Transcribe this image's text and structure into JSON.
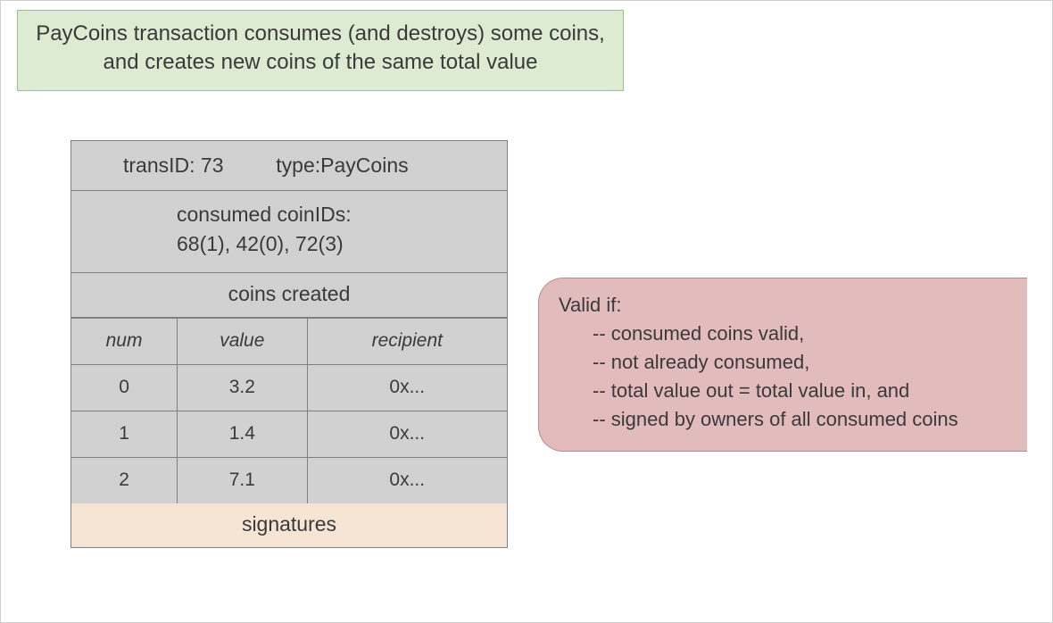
{
  "banner": {
    "line1": "PayCoins transaction consumes (and destroys) some coins,",
    "line2": "and creates new coins of the same total value"
  },
  "transaction": {
    "id_label": "transID:",
    "id_value": "73",
    "type_label": "type:",
    "type_value": "PayCoins",
    "consumed_label": "consumed coinIDs:",
    "consumed_list": "68(1), 42(0), 72(3)",
    "coins_created_label": "coins created",
    "columns": {
      "num": "num",
      "value": "value",
      "recipient": "recipient"
    },
    "rows": [
      {
        "num": "0",
        "value": "3.2",
        "recipient": "0x..."
      },
      {
        "num": "1",
        "value": "1.4",
        "recipient": "0x..."
      },
      {
        "num": "2",
        "value": "7.1",
        "recipient": "0x..."
      }
    ],
    "signatures_label": "signatures"
  },
  "validity": {
    "title": "Valid if:",
    "rules": [
      "-- consumed coins valid,",
      "-- not already consumed,",
      "-- total value out = total value in, and",
      "-- signed by owners of all consumed coins"
    ]
  },
  "style": {
    "banner_bg": "#dcebd1",
    "banner_border": "#9fbf8a",
    "tx_cell_bg": "#d1d1d1",
    "tx_border": "#808080",
    "sig_bg": "#f6e5d4",
    "valid_bg": "#e2bbbd",
    "valid_border": "#b88a8c",
    "text_color": "#3a3a3a",
    "page_bg": "#ffffff"
  }
}
